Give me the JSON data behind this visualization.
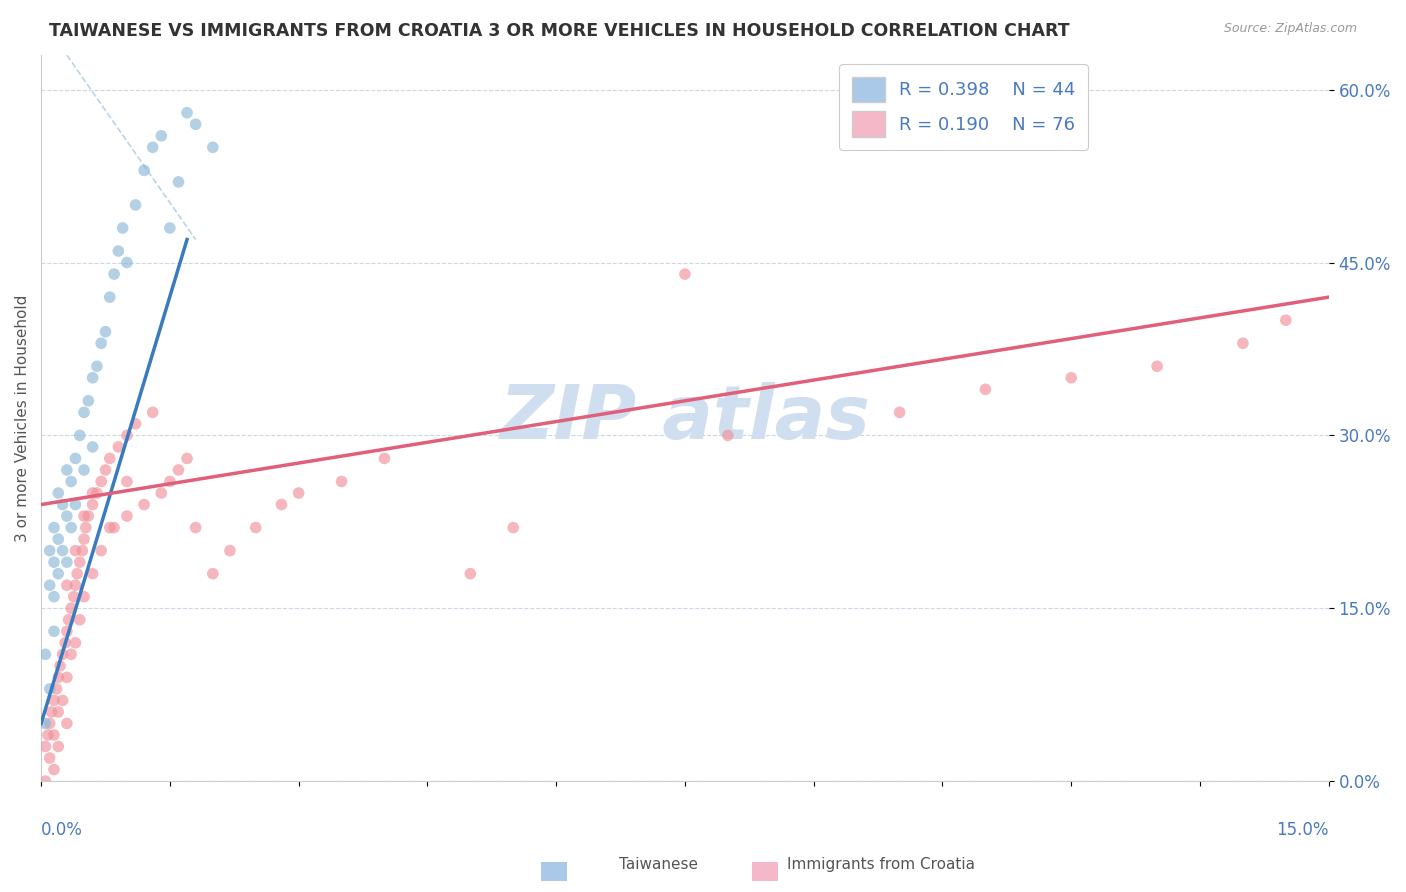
{
  "title": "TAIWANESE VS IMMIGRANTS FROM CROATIA 3 OR MORE VEHICLES IN HOUSEHOLD CORRELATION CHART",
  "source": "Source: ZipAtlas.com",
  "ylabel": "3 or more Vehicles in Household",
  "ytick_vals": [
    0,
    15,
    30,
    45,
    60
  ],
  "xrange": [
    0,
    15
  ],
  "yrange": [
    0,
    63
  ],
  "taiwanese_R": 0.398,
  "taiwanese_N": 44,
  "croatia_R": 0.19,
  "croatia_N": 76,
  "blue_dot_color": "#8ab8d8",
  "blue_line_color": "#3a7abf",
  "pink_dot_color": "#f0909a",
  "pink_line_color": "#e0607a",
  "blue_legend_color": "#aac8e8",
  "pink_legend_color": "#f4b8c8",
  "legend_text_color": "#4a7abf",
  "watermark_color": "#d0dff0",
  "grid_color": "#c8d4e4",
  "title_color": "#333333",
  "source_color": "#999999",
  "ylabel_color": "#555555",
  "xtick_label_color": "#4a7abf",
  "ytick_label_color": "#4a7abf",
  "tai_x": [
    0.05,
    0.05,
    0.1,
    0.1,
    0.1,
    0.15,
    0.15,
    0.15,
    0.15,
    0.2,
    0.2,
    0.2,
    0.25,
    0.25,
    0.3,
    0.3,
    0.3,
    0.35,
    0.35,
    0.4,
    0.4,
    0.45,
    0.5,
    0.5,
    0.55,
    0.6,
    0.6,
    0.65,
    0.7,
    0.75,
    0.8,
    0.85,
    0.9,
    0.95,
    1.0,
    1.1,
    1.2,
    1.3,
    1.4,
    1.5,
    1.6,
    1.7,
    1.8,
    2.0
  ],
  "tai_y": [
    11,
    5,
    20,
    17,
    8,
    22,
    19,
    16,
    13,
    25,
    21,
    18,
    24,
    20,
    27,
    23,
    19,
    26,
    22,
    28,
    24,
    30,
    32,
    27,
    33,
    35,
    29,
    36,
    38,
    39,
    42,
    44,
    46,
    48,
    45,
    50,
    53,
    55,
    56,
    48,
    52,
    58,
    57,
    55
  ],
  "cro_x": [
    0.05,
    0.05,
    0.08,
    0.1,
    0.1,
    0.12,
    0.15,
    0.15,
    0.15,
    0.18,
    0.2,
    0.2,
    0.2,
    0.22,
    0.25,
    0.25,
    0.28,
    0.3,
    0.3,
    0.3,
    0.32,
    0.35,
    0.35,
    0.38,
    0.4,
    0.4,
    0.42,
    0.45,
    0.45,
    0.48,
    0.5,
    0.5,
    0.52,
    0.55,
    0.6,
    0.6,
    0.65,
    0.7,
    0.7,
    0.75,
    0.8,
    0.85,
    0.9,
    1.0,
    1.0,
    1.1,
    1.2,
    1.3,
    1.4,
    1.5,
    1.6,
    1.7,
    1.8,
    2.0,
    2.2,
    2.5,
    2.8,
    3.0,
    3.5,
    4.0,
    5.0,
    5.5,
    7.5,
    8.0,
    10.0,
    11.0,
    12.0,
    13.0,
    14.0,
    14.5,
    0.3,
    0.4,
    0.5,
    0.6,
    0.8,
    1.0
  ],
  "cro_y": [
    3,
    0,
    4,
    5,
    2,
    6,
    7,
    4,
    1,
    8,
    9,
    6,
    3,
    10,
    11,
    7,
    12,
    13,
    9,
    5,
    14,
    15,
    11,
    16,
    17,
    12,
    18,
    19,
    14,
    20,
    21,
    16,
    22,
    23,
    24,
    18,
    25,
    26,
    20,
    27,
    28,
    22,
    29,
    30,
    23,
    31,
    24,
    32,
    25,
    26,
    27,
    28,
    22,
    18,
    20,
    22,
    24,
    25,
    26,
    28,
    18,
    22,
    44,
    30,
    32,
    34,
    35,
    36,
    38,
    40,
    17,
    20,
    23,
    25,
    22,
    26
  ],
  "tai_line_x0": 0.0,
  "tai_line_y0": 5.0,
  "tai_line_x1": 1.7,
  "tai_line_y1": 47.0,
  "cro_line_x0": 0.0,
  "cro_line_y0": 24.0,
  "cro_line_x1": 15.0,
  "cro_line_y1": 42.0,
  "dash_line_x0": 0.3,
  "dash_line_y0": 63.0,
  "dash_line_x1": 1.8,
  "dash_line_y1": 47.0
}
